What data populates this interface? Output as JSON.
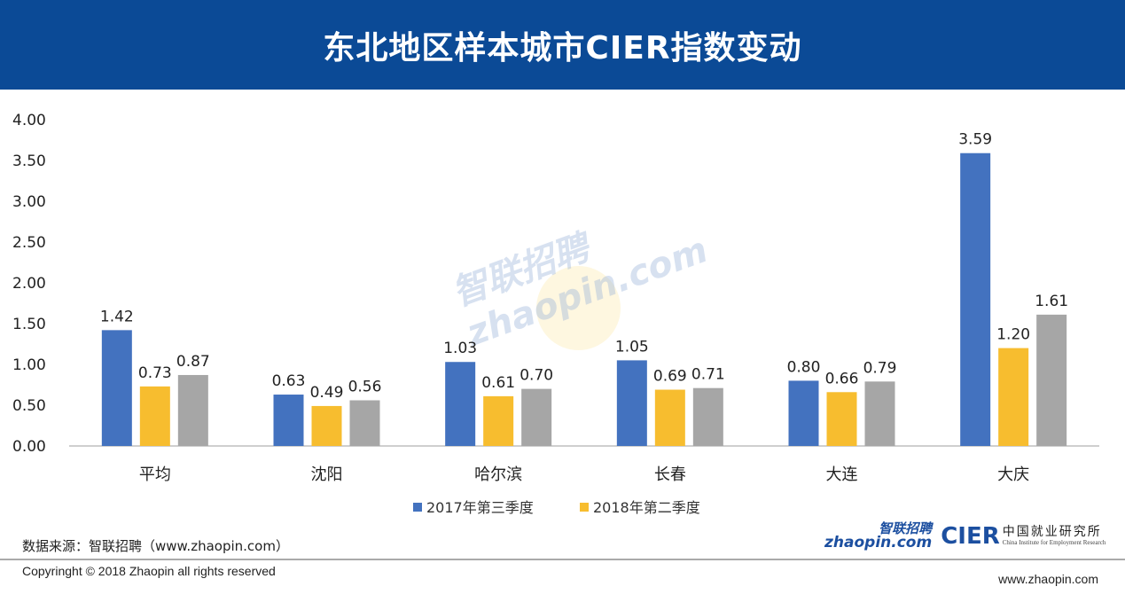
{
  "header": {
    "title": "东北地区样本城市CIER指数变动"
  },
  "chart_data": {
    "type": "bar",
    "title": "",
    "xlabel": "",
    "ylabel": "",
    "categories": [
      "平均",
      "沈阳",
      "哈尔滨",
      "长春",
      "大连",
      "大庆"
    ],
    "series": [
      {
        "name": "2017年第三季度",
        "color": "#4372bf",
        "values": [
          1.42,
          0.63,
          1.03,
          1.05,
          0.8,
          3.59
        ]
      },
      {
        "name": "2018年第二季度",
        "color": "#f7bd2f",
        "values": [
          0.73,
          0.49,
          0.61,
          0.69,
          0.66,
          1.2
        ]
      },
      {
        "name": "",
        "color": "#a6a6a6",
        "values": [
          0.87,
          0.56,
          0.7,
          0.71,
          0.79,
          1.61
        ]
      }
    ],
    "ylim": [
      0,
      4
    ],
    "yticks": [
      "0.00",
      "0.50",
      "1.00",
      "1.50",
      "2.00",
      "2.50",
      "3.00",
      "3.50",
      "4.00"
    ],
    "grid": false,
    "legend": "bottom"
  },
  "watermark": {
    "text_cn": "智联招聘",
    "text_en": "zhaopin.com"
  },
  "footer": {
    "source": "数据来源：智联招聘（www.zhaopin.com）",
    "copyright": "Copyringht © 2018 Zhaopin all rights reserved",
    "site": "www.zhaopin.com"
  },
  "logos": {
    "zhaopin_cn": "智联招聘",
    "zhaopin_en": "zhaopin.com",
    "cier": "CIER",
    "cier_cn": "中国就业研究所",
    "cier_en": "China Institute for Employment Research"
  }
}
